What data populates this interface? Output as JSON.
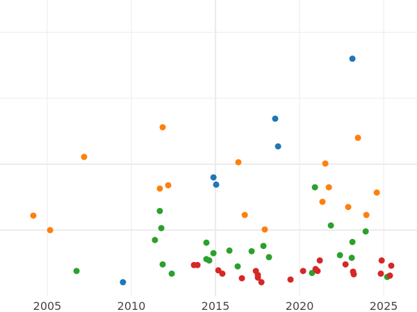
{
  "chart_data": {
    "type": "scatter",
    "title": "",
    "xlabel": "",
    "ylabel": "",
    "xlim": [
      2002.19,
      2026.98
    ],
    "ylim": [
      0,
      4.49
    ],
    "xticks": [
      2005,
      2010,
      2015,
      2020,
      2025
    ],
    "xtick_labels": [
      "2005",
      "2010",
      "2015",
      "2020",
      "2025"
    ],
    "yticks": [
      1,
      2,
      3,
      4
    ],
    "grid": true,
    "legend": "none",
    "series": [
      {
        "name": "blue",
        "color": "#1f77b4",
        "points": [
          [
            2009.5,
            0.21
          ],
          [
            2014.88,
            1.8
          ],
          [
            2015.04,
            1.69
          ],
          [
            2018.55,
            2.69
          ],
          [
            2018.72,
            2.27
          ],
          [
            2023.14,
            3.6
          ]
        ]
      },
      {
        "name": "orange",
        "color": "#ff7f0e",
        "points": [
          [
            2004.17,
            1.22
          ],
          [
            2005.17,
            1.0
          ],
          [
            2007.19,
            2.11
          ],
          [
            2011.69,
            1.63
          ],
          [
            2012.19,
            1.68
          ],
          [
            2011.86,
            2.56
          ],
          [
            2016.36,
            2.03
          ],
          [
            2016.74,
            1.23
          ],
          [
            2017.93,
            1.01
          ],
          [
            2021.36,
            1.43
          ],
          [
            2021.53,
            2.01
          ],
          [
            2021.74,
            1.65
          ],
          [
            2022.89,
            1.35
          ],
          [
            2023.47,
            2.4
          ],
          [
            2023.97,
            1.23
          ],
          [
            2024.59,
            1.57
          ]
        ]
      },
      {
        "name": "green",
        "color": "#2ca02c",
        "points": [
          [
            2006.74,
            0.38
          ],
          [
            2011.4,
            0.85
          ],
          [
            2011.69,
            1.29
          ],
          [
            2011.78,
            1.03
          ],
          [
            2011.86,
            0.48
          ],
          [
            2012.4,
            0.34
          ],
          [
            2014.46,
            0.81
          ],
          [
            2014.46,
            0.56
          ],
          [
            2014.63,
            0.54
          ],
          [
            2014.88,
            0.65
          ],
          [
            2015.83,
            0.69
          ],
          [
            2016.32,
            0.45
          ],
          [
            2017.15,
            0.68
          ],
          [
            2017.85,
            0.76
          ],
          [
            2018.18,
            0.59
          ],
          [
            2020.74,
            0.35
          ],
          [
            2020.91,
            1.65
          ],
          [
            2021.86,
            1.07
          ],
          [
            2022.4,
            0.62
          ],
          [
            2023.14,
            0.82
          ],
          [
            2023.1,
            0.58
          ],
          [
            2023.93,
            0.98
          ],
          [
            2025.21,
            0.29
          ]
        ]
      },
      {
        "name": "red",
        "color": "#d62728",
        "points": [
          [
            2013.72,
            0.47
          ],
          [
            2013.93,
            0.47
          ],
          [
            2015.17,
            0.39
          ],
          [
            2015.41,
            0.34
          ],
          [
            2016.57,
            0.27
          ],
          [
            2017.4,
            0.38
          ],
          [
            2017.52,
            0.32
          ],
          [
            2017.52,
            0.28
          ],
          [
            2017.73,
            0.21
          ],
          [
            2019.46,
            0.25
          ],
          [
            2020.21,
            0.38
          ],
          [
            2020.95,
            0.41
          ],
          [
            2021.07,
            0.38
          ],
          [
            2021.2,
            0.54
          ],
          [
            2022.73,
            0.48
          ],
          [
            2023.18,
            0.37
          ],
          [
            2023.22,
            0.33
          ],
          [
            2024.83,
            0.34
          ],
          [
            2024.88,
            0.54
          ],
          [
            2025.37,
            0.31
          ],
          [
            2025.45,
            0.46
          ]
        ]
      }
    ]
  }
}
